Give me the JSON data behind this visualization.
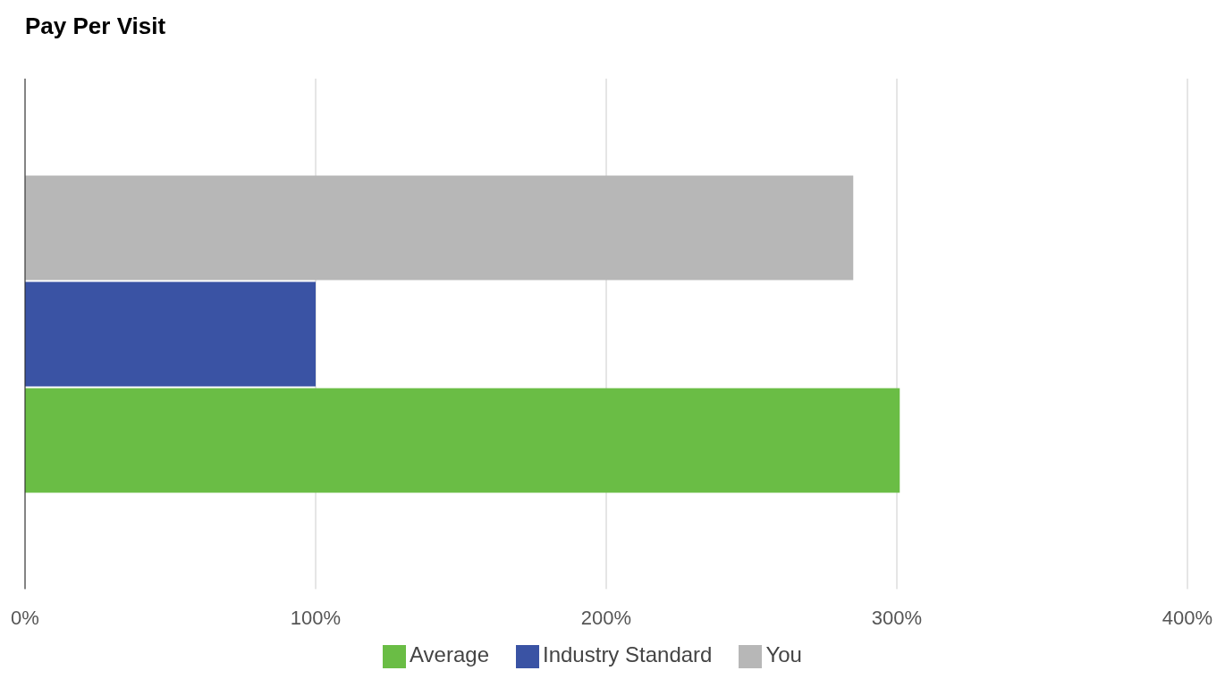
{
  "chart_data": {
    "type": "bar",
    "orientation": "horizontal",
    "title": "Pay Per Visit",
    "categories": [
      null
    ],
    "series": [
      {
        "name": "You",
        "color": "#b7b7b7",
        "values": [
          285
        ]
      },
      {
        "name": "Industry Standard",
        "color": "#3a53a4",
        "values": [
          100
        ]
      },
      {
        "name": "Average",
        "color": "#6abd45",
        "values": [
          301
        ]
      }
    ],
    "xlim": [
      0,
      400
    ],
    "xticks": [
      {
        "value": 0,
        "label": "0%"
      },
      {
        "value": 100,
        "label": "100%"
      },
      {
        "value": 200,
        "label": "200%"
      },
      {
        "value": 300,
        "label": "300%"
      },
      {
        "value": 400,
        "label": "400%"
      }
    ],
    "grid": "x",
    "legend": "bottom"
  }
}
